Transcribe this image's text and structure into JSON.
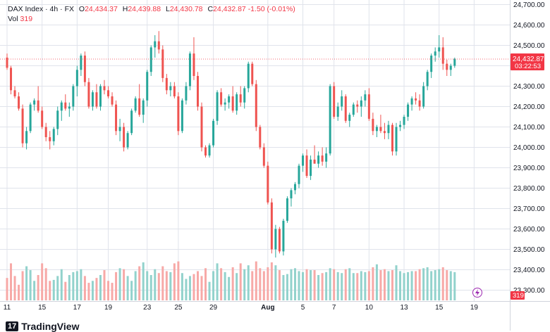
{
  "header": {
    "symbol": "DAX Index",
    "interval": "4h",
    "exchange": "FX",
    "sep": "·",
    "open_label": "O",
    "open_value": "24,434.37",
    "high_label": "H",
    "high_value": "24,439.88",
    "low_label": "L",
    "low_value": "24,430.78",
    "close_label": "C",
    "close_value": "24,432.87",
    "change_value": "-1.50 (-0.01%)",
    "volume_label": "Vol",
    "volume_value": "319"
  },
  "branding": {
    "mark": "17",
    "name": "TradingView"
  },
  "colors": {
    "up": "#26a69a",
    "down": "#ef5350",
    "up_volume": "#92d2cc",
    "down_volume": "#f7a9a7",
    "grid": "#e0e3eb",
    "price_tag": "#f23645"
  },
  "chart_data": {
    "type": "candlestick",
    "title": "DAX Index · 4h · FX",
    "ylim": [
      23230,
      24700
    ],
    "y_ticks": [
      24700,
      24600,
      24500,
      24400,
      24300,
      24200,
      24100,
      24000,
      23900,
      23800,
      23700,
      23600,
      23500,
      23400,
      23300
    ],
    "y_tick_labels": [
      "24,700.00",
      "24,600.00",
      "24,500.00",
      "24,400.00",
      "24,300.00",
      "24,200.00",
      "24,100.00",
      "24,000.00",
      "23,900.00",
      "23,800.00",
      "23,700.00",
      "23,600.00",
      "23,500.00",
      "23,400.00",
      "23,300.00"
    ],
    "x_ticks": [
      {
        "label": "11",
        "index": 0
      },
      {
        "label": "15",
        "index": 9
      },
      {
        "label": "17",
        "index": 18
      },
      {
        "label": "19",
        "index": 26
      },
      {
        "label": "23",
        "index": 36
      },
      {
        "label": "25",
        "index": 44
      },
      {
        "label": "29",
        "index": 53
      },
      {
        "label": "Aug",
        "index": 67
      },
      {
        "label": "5",
        "index": 76
      },
      {
        "label": "7",
        "index": 84
      },
      {
        "label": "10",
        "index": 93
      },
      {
        "label": "13",
        "index": 102
      },
      {
        "label": "15",
        "index": 111
      },
      {
        "label": "19",
        "index": 120
      }
    ],
    "last_price": {
      "value": 24432.87,
      "label": "24,432.87",
      "countdown": "03:22:53"
    },
    "volume_tag": "319",
    "volume_scale_max": 520,
    "candles": [
      [
        24440,
        24460,
        24380,
        24390,
        230
      ],
      [
        24390,
        24400,
        24260,
        24280,
        380
      ],
      [
        24280,
        24300,
        24240,
        24250,
        250
      ],
      [
        24250,
        24270,
        24180,
        24190,
        160
      ],
      [
        24190,
        24210,
        24000,
        24020,
        300
      ],
      [
        24020,
        24100,
        23990,
        24080,
        350
      ],
      [
        24080,
        24220,
        24070,
        24210,
        310
      ],
      [
        24210,
        24240,
        24180,
        24230,
        200
      ],
      [
        24230,
        24300,
        24170,
        24180,
        260
      ],
      [
        24180,
        24200,
        24090,
        24100,
        380
      ],
      [
        24100,
        24120,
        24030,
        24050,
        330
      ],
      [
        24050,
        24080,
        23990,
        24030,
        200
      ],
      [
        24030,
        24100,
        24010,
        24090,
        210
      ],
      [
        24090,
        24200,
        24060,
        24180,
        250
      ],
      [
        24180,
        24230,
        24130,
        24220,
        320
      ],
      [
        24220,
        24260,
        24180,
        24190,
        190
      ],
      [
        24190,
        24220,
        24150,
        24200,
        260
      ],
      [
        24200,
        24310,
        24180,
        24300,
        290
      ],
      [
        24300,
        24400,
        24250,
        24380,
        300
      ],
      [
        24380,
        24460,
        24350,
        24450,
        320
      ],
      [
        24450,
        24470,
        24300,
        24320,
        250
      ],
      [
        24320,
        24340,
        24190,
        24200,
        180
      ],
      [
        24200,
        24280,
        24180,
        24270,
        200
      ],
      [
        24270,
        24310,
        24190,
        24200,
        230
      ],
      [
        24200,
        24310,
        24180,
        24300,
        260
      ],
      [
        24300,
        24330,
        24260,
        24280,
        310
      ],
      [
        24280,
        24300,
        24240,
        24250,
        200
      ],
      [
        24250,
        24270,
        24200,
        24210,
        180
      ],
      [
        24210,
        24230,
        24060,
        24080,
        290
      ],
      [
        24080,
        24140,
        24030,
        24100,
        330
      ],
      [
        24100,
        24120,
        23980,
        24000,
        320
      ],
      [
        24000,
        24080,
        23990,
        24070,
        250
      ],
      [
        24070,
        24190,
        24060,
        24180,
        200
      ],
      [
        24180,
        24250,
        24170,
        24240,
        300
      ],
      [
        24240,
        24310,
        24150,
        24160,
        350
      ],
      [
        24160,
        24240,
        24120,
        24230,
        390
      ],
      [
        24230,
        24380,
        24200,
        24370,
        300
      ],
      [
        24370,
        24500,
        24350,
        24490,
        260
      ],
      [
        24490,
        24550,
        24440,
        24520,
        320
      ],
      [
        24520,
        24570,
        24460,
        24480,
        280
      ],
      [
        24480,
        24500,
        24320,
        24340,
        350
      ],
      [
        24340,
        24360,
        24260,
        24280,
        300
      ],
      [
        24280,
        24320,
        24250,
        24300,
        290
      ],
      [
        24300,
        24320,
        24240,
        24250,
        380
      ],
      [
        24250,
        24270,
        24060,
        24080,
        400
      ],
      [
        24080,
        24240,
        24070,
        24230,
        280
      ],
      [
        24230,
        24320,
        24210,
        24300,
        220
      ],
      [
        24300,
        24470,
        24280,
        24460,
        250
      ],
      [
        24460,
        24540,
        24330,
        24350,
        270
      ],
      [
        24350,
        24370,
        24180,
        24200,
        300
      ],
      [
        24200,
        24220,
        23980,
        24000,
        250
      ],
      [
        24000,
        24010,
        23950,
        23960,
        330
      ],
      [
        23960,
        24020,
        23950,
        24010,
        190
      ],
      [
        24010,
        24140,
        24000,
        24130,
        300
      ],
      [
        24130,
        24280,
        24110,
        24270,
        380
      ],
      [
        24270,
        24290,
        24200,
        24210,
        330
      ],
      [
        24210,
        24240,
        24180,
        24220,
        290
      ],
      [
        24220,
        24260,
        24190,
        24250,
        240
      ],
      [
        24250,
        24300,
        24170,
        24180,
        340
      ],
      [
        24180,
        24270,
        24160,
        24260,
        280
      ],
      [
        24260,
        24300,
        24200,
        24220,
        380
      ],
      [
        24220,
        24300,
        24190,
        24290,
        320
      ],
      [
        24290,
        24420,
        24270,
        24410,
        360
      ],
      [
        24410,
        24420,
        24300,
        24310,
        300
      ],
      [
        24310,
        24330,
        24080,
        24100,
        400
      ],
      [
        24100,
        24110,
        23990,
        24000,
        330
      ],
      [
        24000,
        24020,
        23900,
        23910,
        300
      ],
      [
        23910,
        23930,
        23720,
        23730,
        340
      ],
      [
        23730,
        23750,
        23480,
        23500,
        390
      ],
      [
        23500,
        23620,
        23460,
        23600,
        360
      ],
      [
        23600,
        23610,
        23480,
        23490,
        310
      ],
      [
        23490,
        23650,
        23470,
        23640,
        260
      ],
      [
        23640,
        23760,
        23630,
        23750,
        270
      ],
      [
        23750,
        23800,
        23710,
        23790,
        320
      ],
      [
        23790,
        23830,
        23770,
        23820,
        330
      ],
      [
        23820,
        23920,
        23800,
        23910,
        300
      ],
      [
        23910,
        23970,
        23880,
        23960,
        290
      ],
      [
        23960,
        23990,
        23850,
        23860,
        320
      ],
      [
        23860,
        23960,
        23840,
        23940,
        310
      ],
      [
        23940,
        24010,
        23920,
        23920,
        310
      ],
      [
        23920,
        23980,
        23900,
        23960,
        260
      ],
      [
        23960,
        24000,
        23910,
        23930,
        280
      ],
      [
        23930,
        24000,
        23900,
        23970,
        290
      ],
      [
        23970,
        24310,
        23960,
        24300,
        330
      ],
      [
        24300,
        24320,
        24140,
        24150,
        320
      ],
      [
        24150,
        24220,
        24130,
        24200,
        290
      ],
      [
        24200,
        24280,
        24180,
        24250,
        280
      ],
      [
        24250,
        24260,
        24120,
        24130,
        320
      ],
      [
        24130,
        24170,
        24100,
        24160,
        330
      ],
      [
        24160,
        24220,
        24150,
        24210,
        280
      ],
      [
        24210,
        24230,
        24170,
        24200,
        280
      ],
      [
        24200,
        24250,
        24150,
        24230,
        300
      ],
      [
        24230,
        24280,
        24200,
        24260,
        290
      ],
      [
        24260,
        24290,
        24130,
        24140,
        300
      ],
      [
        24140,
        24170,
        24060,
        24080,
        340
      ],
      [
        24080,
        24110,
        24050,
        24100,
        370
      ],
      [
        24100,
        24160,
        24070,
        24080,
        310
      ],
      [
        24080,
        24120,
        24040,
        24070,
        320
      ],
      [
        24070,
        24130,
        24040,
        24110,
        300
      ],
      [
        24110,
        24120,
        23960,
        23980,
        310
      ],
      [
        23980,
        24120,
        23960,
        24100,
        360
      ],
      [
        24100,
        24130,
        24080,
        24110,
        300
      ],
      [
        24110,
        24160,
        24090,
        24150,
        280
      ],
      [
        24150,
        24220,
        24130,
        24210,
        290
      ],
      [
        24210,
        24250,
        24180,
        24240,
        300
      ],
      [
        24240,
        24270,
        24210,
        24230,
        300
      ],
      [
        24230,
        24260,
        24180,
        24200,
        320
      ],
      [
        24200,
        24320,
        24190,
        24300,
        330
      ],
      [
        24300,
        24380,
        24280,
        24370,
        340
      ],
      [
        24370,
        24460,
        24340,
        24450,
        300
      ],
      [
        24450,
        24490,
        24420,
        24470,
        310
      ],
      [
        24470,
        24550,
        24440,
        24490,
        320
      ],
      [
        24490,
        24540,
        24380,
        24410,
        340
      ],
      [
        24410,
        24430,
        24350,
        24380,
        310
      ],
      [
        24380,
        24410,
        24350,
        24400,
        300
      ],
      [
        24400,
        24440,
        24390,
        24434,
        290
      ]
    ]
  }
}
